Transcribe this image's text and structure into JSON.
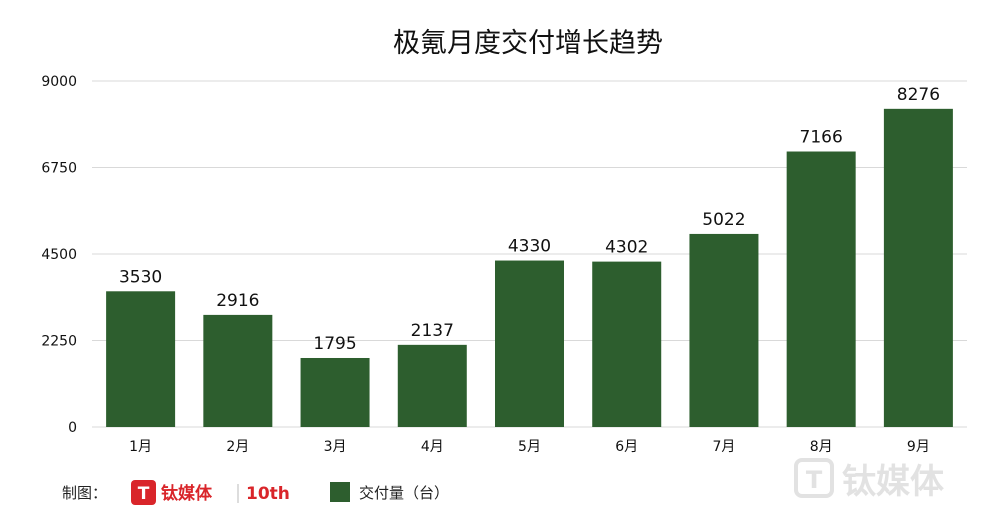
{
  "chart_data": {
    "type": "bar",
    "title": "极氪月度交付增长趋势",
    "categories": [
      "1月",
      "2月",
      "3月",
      "4月",
      "5月",
      "6月",
      "7月",
      "8月",
      "9月"
    ],
    "series": [
      {
        "name": "交付量（台）",
        "values": [
          3530,
          2916,
          1795,
          2137,
          4330,
          4302,
          5022,
          7166,
          8276
        ]
      }
    ],
    "yticks": [
      0,
      2250,
      4500,
      6750,
      9000
    ],
    "ylim": [
      0,
      9000
    ],
    "grid": true,
    "legend_position": "bottom",
    "bar_color": "#2d5e2e",
    "grid_color": "#d9d9d9"
  },
  "footer": {
    "credit_label": "制图：",
    "logo_brand": "钛媒体",
    "logo_badge": "10th",
    "logo_color": "#d9252a"
  },
  "watermark": {
    "text": "钛媒体",
    "color": "#e2e2e2"
  }
}
